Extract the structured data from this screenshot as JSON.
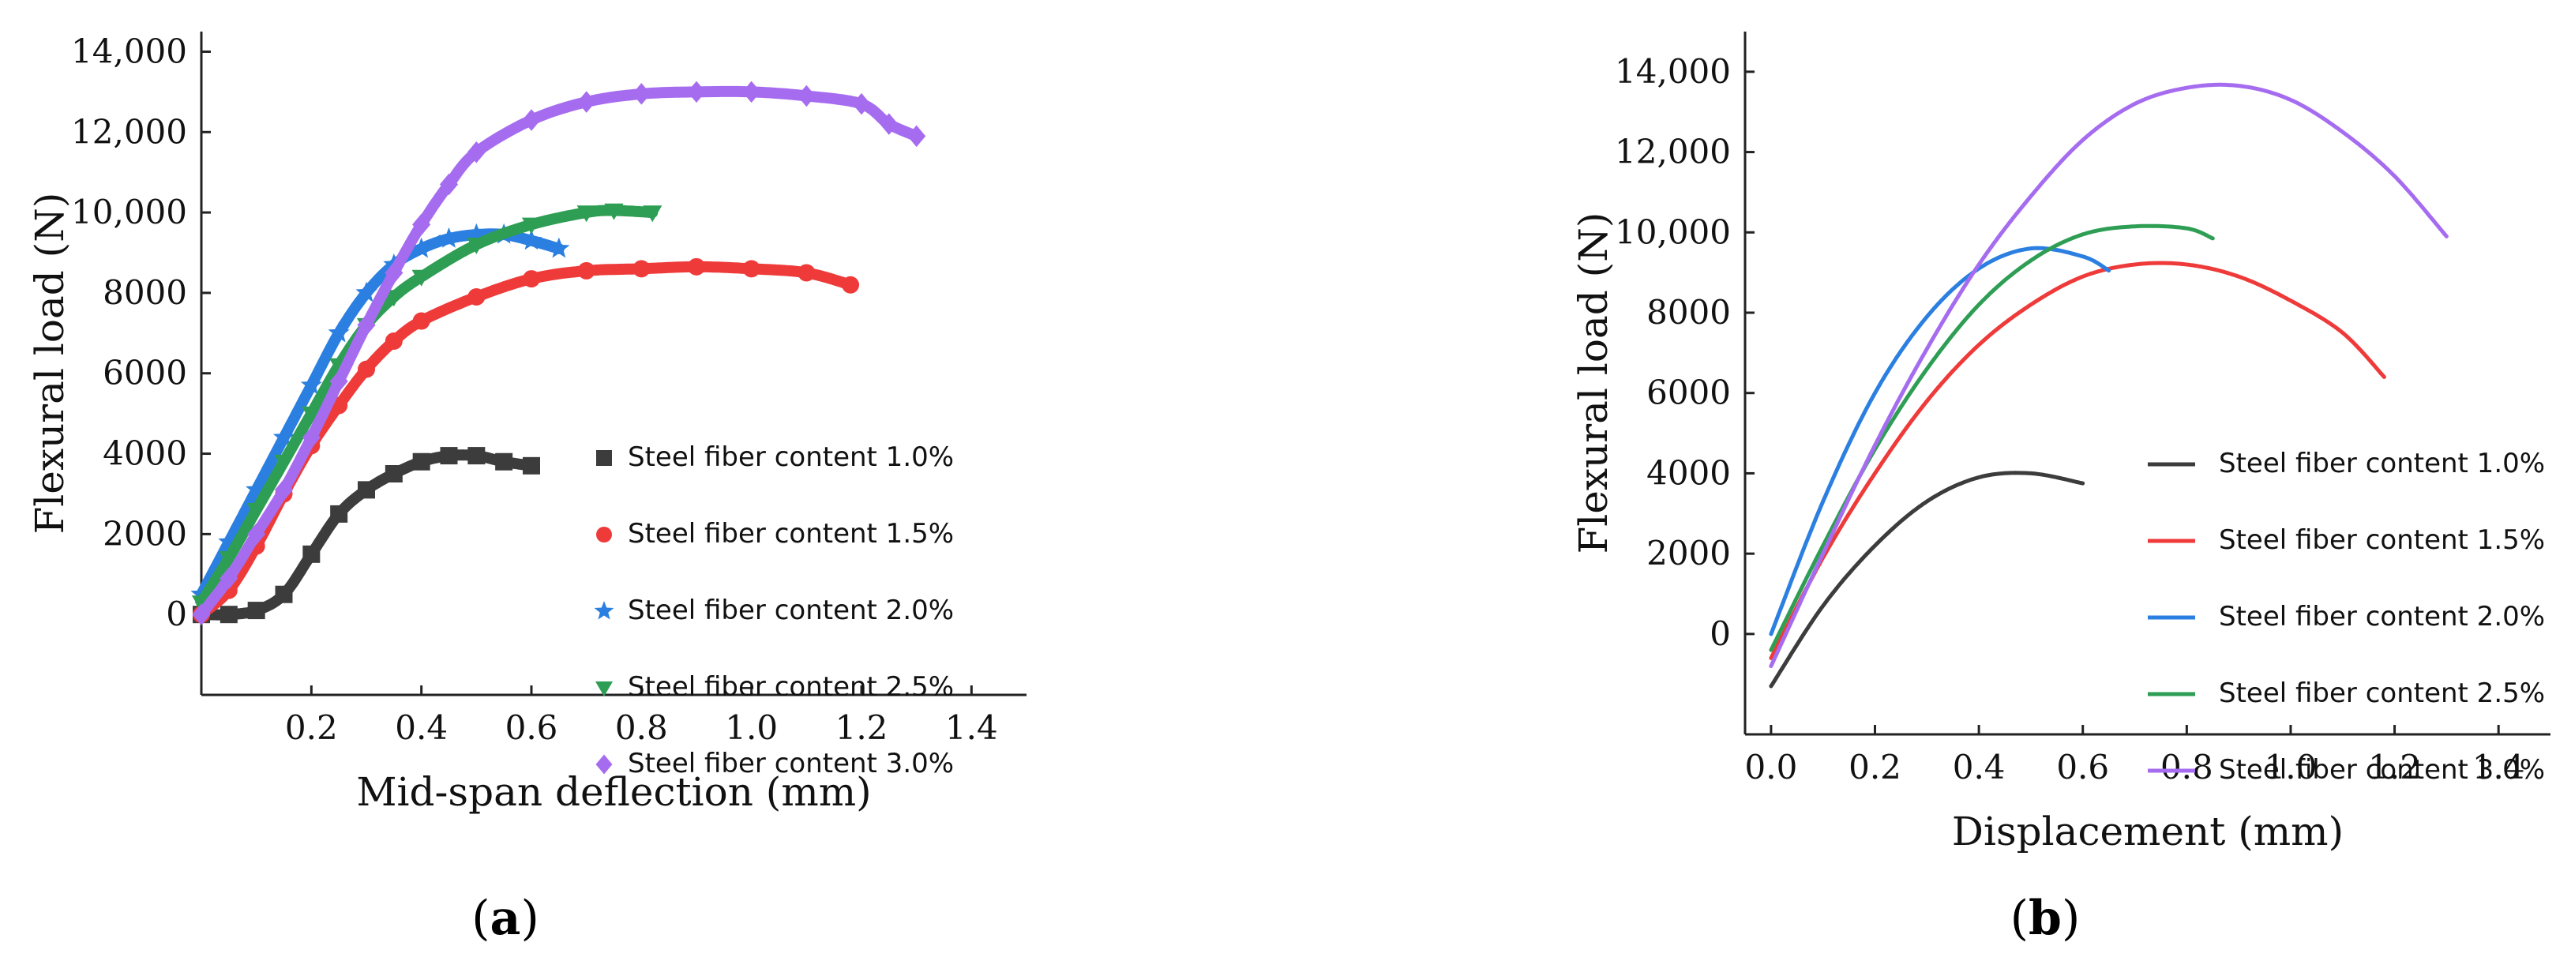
{
  "chart_data": [
    {
      "type": "scatter",
      "panel_label": "a",
      "xlabel": "Mid-span deflection (mm)",
      "ylabel": "Flexural load (N)",
      "xlim": [
        0,
        1.5
      ],
      "ylim": [
        -2000,
        14500
      ],
      "x_ticks": [
        0.2,
        0.4,
        0.6,
        0.8,
        1.0,
        1.2,
        1.4
      ],
      "x_tick_labels": [
        "0.2",
        "0.4",
        "0.6",
        "0.8",
        "1.0",
        "1.2",
        "1.4"
      ],
      "y_ticks": [
        0,
        2000,
        4000,
        6000,
        8000,
        10000,
        12000,
        14000
      ],
      "y_tick_labels": [
        "0",
        "2000",
        "4000",
        "6000",
        "8000",
        "10,000",
        "12,000",
        "14,000"
      ],
      "grid": false,
      "legend_position": "bottom-right",
      "series": [
        {
          "name": "Steel fiber content 1.0%",
          "color": "#3c3c3c",
          "marker": "square",
          "x": [
            0.0,
            0.05,
            0.1,
            0.15,
            0.2,
            0.25,
            0.3,
            0.35,
            0.4,
            0.45,
            0.5,
            0.55,
            0.6
          ],
          "y": [
            0,
            0,
            100,
            500,
            1500,
            2500,
            3100,
            3500,
            3800,
            3950,
            3950,
            3800,
            3700
          ]
        },
        {
          "name": "Steel fiber content 1.5%",
          "color": "#ef3a3a",
          "marker": "circle",
          "x": [
            0.0,
            0.05,
            0.1,
            0.15,
            0.2,
            0.25,
            0.3,
            0.35,
            0.4,
            0.5,
            0.6,
            0.7,
            0.8,
            0.9,
            1.0,
            1.1,
            1.18
          ],
          "y": [
            0,
            600,
            1700,
            3000,
            4200,
            5200,
            6100,
            6800,
            7300,
            7900,
            8350,
            8550,
            8600,
            8650,
            8600,
            8500,
            8200
          ]
        },
        {
          "name": "Steel fiber content 2.0%",
          "color": "#2b7fe0",
          "marker": "star",
          "x": [
            0.0,
            0.05,
            0.1,
            0.15,
            0.2,
            0.25,
            0.3,
            0.35,
            0.4,
            0.45,
            0.5,
            0.55,
            0.6,
            0.65
          ],
          "y": [
            500,
            1800,
            3100,
            4400,
            5700,
            7000,
            8000,
            8700,
            9100,
            9350,
            9450,
            9450,
            9300,
            9100
          ]
        },
        {
          "name": "Steel fiber content 2.5%",
          "color": "#2e9e54",
          "marker": "triangle-down",
          "x": [
            0.0,
            0.05,
            0.1,
            0.15,
            0.2,
            0.25,
            0.3,
            0.35,
            0.4,
            0.5,
            0.6,
            0.7,
            0.75,
            0.82
          ],
          "y": [
            300,
            1400,
            2600,
            3800,
            5000,
            6200,
            7200,
            7900,
            8400,
            9200,
            9700,
            10000,
            10050,
            10000
          ]
        },
        {
          "name": "Steel fiber content 3.0%",
          "color": "#a66cf0",
          "marker": "diamond",
          "x": [
            0.0,
            0.05,
            0.1,
            0.15,
            0.2,
            0.25,
            0.3,
            0.35,
            0.4,
            0.45,
            0.5,
            0.6,
            0.7,
            0.8,
            0.9,
            1.0,
            1.1,
            1.2,
            1.25,
            1.3
          ],
          "y": [
            0,
            900,
            2000,
            3100,
            4400,
            5800,
            7200,
            8500,
            9700,
            10700,
            11500,
            12300,
            12750,
            12950,
            13000,
            13000,
            12900,
            12700,
            12200,
            11900
          ]
        }
      ]
    },
    {
      "type": "line",
      "panel_label": "b",
      "xlabel": "Displacement (mm)",
      "ylabel": "Flexural load (N)",
      "xlim": [
        -0.05,
        1.5
      ],
      "ylim": [
        -2500,
        15000
      ],
      "x_ticks": [
        0.0,
        0.2,
        0.4,
        0.6,
        0.8,
        1.0,
        1.2,
        1.4
      ],
      "x_tick_labels": [
        "0.0",
        "0.2",
        "0.4",
        "0.6",
        "0.8",
        "1.0",
        "1.2",
        "1.4"
      ],
      "y_ticks": [
        0,
        2000,
        4000,
        6000,
        8000,
        10000,
        12000,
        14000
      ],
      "y_tick_labels": [
        "0",
        "2000",
        "4000",
        "6000",
        "8000",
        "10,000",
        "12,000",
        "14,000"
      ],
      "grid": false,
      "legend_position": "bottom-right",
      "series": [
        {
          "name": "Steel fiber content 1.0%",
          "color": "#3c3c3c",
          "x": [
            0.0,
            0.1,
            0.2,
            0.3,
            0.4,
            0.5,
            0.6
          ],
          "y": [
            -1300,
            700,
            2200,
            3300,
            3900,
            4000,
            3750
          ]
        },
        {
          "name": "Steel fiber content 1.5%",
          "color": "#ef3a3a",
          "x": [
            0.0,
            0.1,
            0.2,
            0.3,
            0.4,
            0.5,
            0.6,
            0.7,
            0.8,
            0.9,
            1.0,
            1.1,
            1.18
          ],
          "y": [
            -600,
            1900,
            4000,
            5800,
            7200,
            8200,
            8900,
            9200,
            9200,
            8900,
            8300,
            7500,
            6400
          ]
        },
        {
          "name": "Steel fiber content 2.0%",
          "color": "#2b7fe0",
          "x": [
            0.0,
            0.1,
            0.2,
            0.3,
            0.4,
            0.5,
            0.6,
            0.65
          ],
          "y": [
            0,
            3300,
            6000,
            7900,
            9100,
            9600,
            9400,
            9050
          ]
        },
        {
          "name": "Steel fiber content 2.5%",
          "color": "#2e9e54",
          "x": [
            0.0,
            0.1,
            0.2,
            0.3,
            0.4,
            0.5,
            0.6,
            0.7,
            0.8,
            0.85
          ],
          "y": [
            -400,
            2200,
            4600,
            6600,
            8200,
            9300,
            9950,
            10150,
            10100,
            9850
          ]
        },
        {
          "name": "Steel fiber content 3.0%",
          "color": "#a66cf0",
          "x": [
            0.0,
            0.1,
            0.2,
            0.3,
            0.4,
            0.5,
            0.6,
            0.7,
            0.8,
            0.9,
            1.0,
            1.1,
            1.2,
            1.3
          ],
          "y": [
            -800,
            2000,
            4700,
            7100,
            9200,
            10900,
            12300,
            13200,
            13600,
            13650,
            13300,
            12500,
            11400,
            9900
          ]
        }
      ]
    }
  ]
}
